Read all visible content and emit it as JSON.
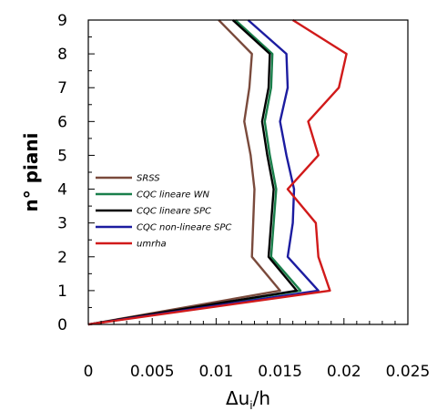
{
  "chart_data": {
    "type": "line",
    "xlabel_main": "Δu",
    "xlabel_sub": "i",
    "xlabel_tail": "/h",
    "ylabel": "n° piani",
    "xlim": [
      0,
      0.025
    ],
    "ylim": [
      0,
      9
    ],
    "x_ticks": [
      "0",
      "0.005",
      "0.01",
      "0.015",
      "0.02",
      "0.025"
    ],
    "x_tick_values": [
      0,
      0.005,
      0.01,
      0.015,
      0.02,
      0.025
    ],
    "y_ticks": [
      "0",
      "1",
      "2",
      "3",
      "4",
      "5",
      "6",
      "7",
      "8",
      "9"
    ],
    "y_tick_values": [
      0,
      1,
      2,
      3,
      4,
      5,
      6,
      7,
      8,
      9
    ],
    "grid": false,
    "legend_position": "left-middle",
    "y": [
      0,
      1,
      2,
      3,
      4,
      5,
      6,
      7,
      8,
      9
    ],
    "series": [
      {
        "name": "SRSS",
        "color": "#7a4a3c",
        "x": [
          0,
          0.015,
          0.0128,
          0.0129,
          0.013,
          0.0127,
          0.0122,
          0.0126,
          0.0128,
          0.0102
        ]
      },
      {
        "name": "CQC lineare WN",
        "color": "#1a7f4b",
        "x": [
          0,
          0.0166,
          0.0143,
          0.0145,
          0.0147,
          0.0142,
          0.0138,
          0.0143,
          0.0144,
          0.0115
        ]
      },
      {
        "name": "CQC lineare SPC",
        "color": "#000000",
        "x": [
          0,
          0.0163,
          0.0141,
          0.0143,
          0.0145,
          0.014,
          0.0136,
          0.0141,
          0.0142,
          0.0113
        ]
      },
      {
        "name": "CQC non-lineare SPC",
        "color": "#1c1ca0",
        "x": [
          0,
          0.018,
          0.0156,
          0.016,
          0.0161,
          0.0155,
          0.015,
          0.0156,
          0.0155,
          0.0125
        ]
      },
      {
        "name": "umrha",
        "color": "#d11a1a",
        "x": [
          0,
          0.0189,
          0.018,
          0.0178,
          0.0156,
          0.018,
          0.0172,
          0.0196,
          0.0202,
          0.016
        ]
      }
    ]
  }
}
